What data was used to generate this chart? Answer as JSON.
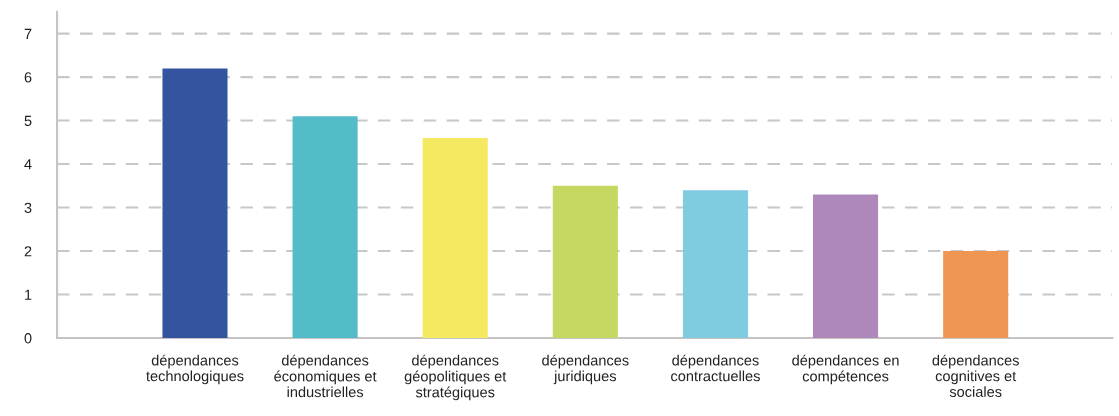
{
  "chart_data": {
    "type": "bar",
    "categories": [
      "dépendances\ntechnologiques",
      "dépendances\néconomiques et\nindustrielles",
      "dépendances\ngéopolitiques et\nstratégiques",
      "dépendances\njuridiques",
      "dépendances\ncontractuelles",
      "dépendances en\ncompétences",
      "dépendances\ncognitives et\nsociales"
    ],
    "values": [
      6.2,
      5.1,
      4.6,
      3.5,
      3.4,
      3.3,
      2.0
    ],
    "colors": [
      "#3454a0",
      "#54bcc8",
      "#f5e962",
      "#c6d762",
      "#7fcbdf",
      "#ae87bb",
      "#f09655"
    ],
    "ylim": [
      0,
      7.5
    ],
    "yticks": [
      0,
      1,
      2,
      3,
      4,
      5,
      6,
      7
    ],
    "grid": "y",
    "legend": false
  }
}
